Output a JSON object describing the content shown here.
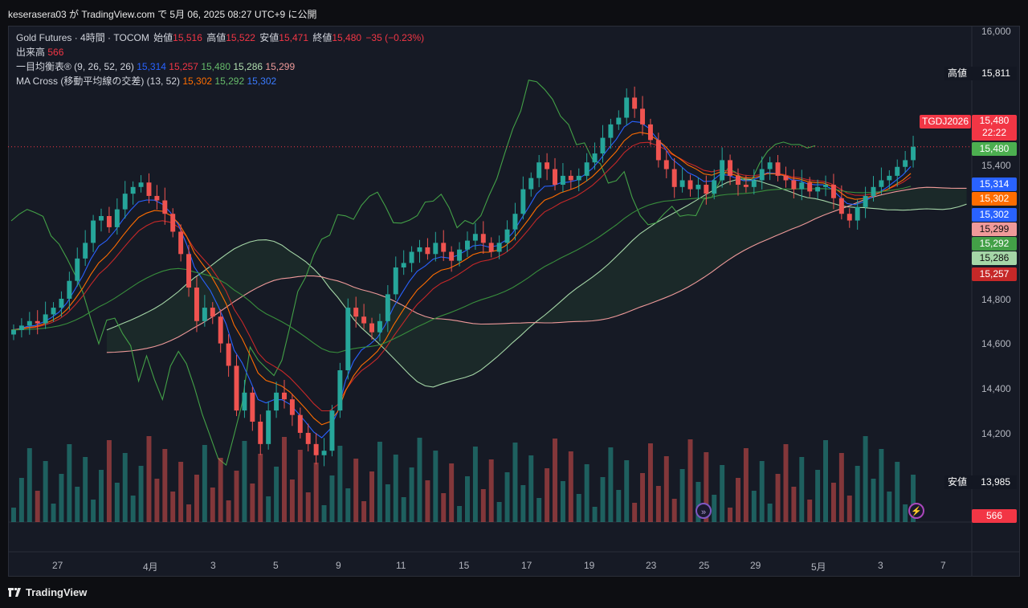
{
  "header": {
    "publish_text": "keserasera03 が TradingView.com で 5月 06, 2025 08:27 UTC+9 に公開"
  },
  "legend": {
    "symbol": "Gold Futures · 4時間 · TOCOM",
    "open_label": "始値",
    "open": "15,516",
    "high_label": "高値",
    "high": "15,522",
    "low_label": "安値",
    "low": "15,471",
    "close_label": "終値",
    "close": "15,480",
    "change": "−35 (−0.23%)",
    "volume_label": "出来高",
    "volume": "566",
    "ichimoku_label": "一目均衡表® (9, 26, 52, 26)",
    "ichimoku_values": [
      "15,314",
      "15,257",
      "15,480",
      "15,286",
      "15,299"
    ],
    "ma_label": "MA Cross (移動平均線の交差) (13, 52)",
    "ma_values": [
      "15,302",
      "15,292",
      "15,302"
    ]
  },
  "price_axis": {
    "ticks": [
      "16,000",
      "15,400",
      "14,800",
      "14,600",
      "14,400",
      "14,200"
    ],
    "high_label": "高値",
    "high_value": "15,811",
    "low_label": "安値",
    "low_value": "13,985",
    "symbol_tag": "TGDJ2026",
    "last_price": "15,480",
    "countdown": "22:22",
    "tags": [
      {
        "value": "15,480",
        "color": "#4caf50"
      },
      {
        "value": "15,314",
        "color": "#2962ff"
      },
      {
        "value": "15,302",
        "color": "#ff6d00"
      },
      {
        "value": "15,302",
        "color": "#2962ff"
      },
      {
        "value": "15,299",
        "color": "#ef9a9a"
      },
      {
        "value": "15,292",
        "color": "#43a047"
      },
      {
        "value": "15,286",
        "color": "#a5d6a7"
      },
      {
        "value": "15,257",
        "color": "#c62828"
      }
    ],
    "volume_tag": "566"
  },
  "time_axis": {
    "ticks": [
      "27",
      "4月",
      "3",
      "5",
      "9",
      "11",
      "15",
      "17",
      "19",
      "23",
      "25",
      "29",
      "5月",
      "3",
      "7"
    ]
  },
  "footer": {
    "brand": "TradingView"
  },
  "chart_data": {
    "type": "candlestick",
    "symbol": "Gold Futures",
    "interval": "4時間",
    "exchange": "TOCOM",
    "ylim": [
      13985,
      16000
    ],
    "closes": [
      14660,
      14680,
      14700,
      14690,
      14730,
      14760,
      14800,
      14880,
      14980,
      15050,
      15150,
      15170,
      15120,
      15200,
      15270,
      15300,
      15320,
      15260,
      15240,
      15180,
      15100,
      15000,
      14850,
      14700,
      14760,
      14720,
      14600,
      14500,
      14300,
      14380,
      14250,
      14150,
      14300,
      14380,
      14350,
      14280,
      14200,
      14150,
      14100,
      14120,
      14300,
      14480,
      14760,
      14720,
      14690,
      14650,
      14700,
      14820,
      14940,
      14960,
      15010,
      15030,
      15000,
      15050,
      15010,
      14970,
      15020,
      15060,
      15090,
      15050,
      15010,
      15050,
      15110,
      15180,
      15290,
      15340,
      15410,
      15380,
      15310,
      15350,
      15330,
      15350,
      15410,
      15450,
      15520,
      15580,
      15610,
      15700,
      15650,
      15580,
      15510,
      15420,
      15380,
      15300,
      15330,
      15290,
      15310,
      15270,
      15330,
      15420,
      15350,
      15310,
      15300,
      15330,
      15380,
      15410,
      15350,
      15330,
      15290,
      15320,
      15280,
      15300,
      15310,
      15250,
      15180,
      15150,
      15210,
      15260,
      15300,
      15330,
      15350,
      15390,
      15420,
      15480
    ],
    "volume": [
      566
    ],
    "ichimoku": {
      "conversion": 15314,
      "base": 15257,
      "lagging": 15480,
      "span_a": 15286,
      "span_b": 15299
    },
    "ma_cross": {
      "short": 15302,
      "long": 15292,
      "cross": 15302
    },
    "session_high": 15811,
    "session_low": 13985,
    "last": 15480
  }
}
